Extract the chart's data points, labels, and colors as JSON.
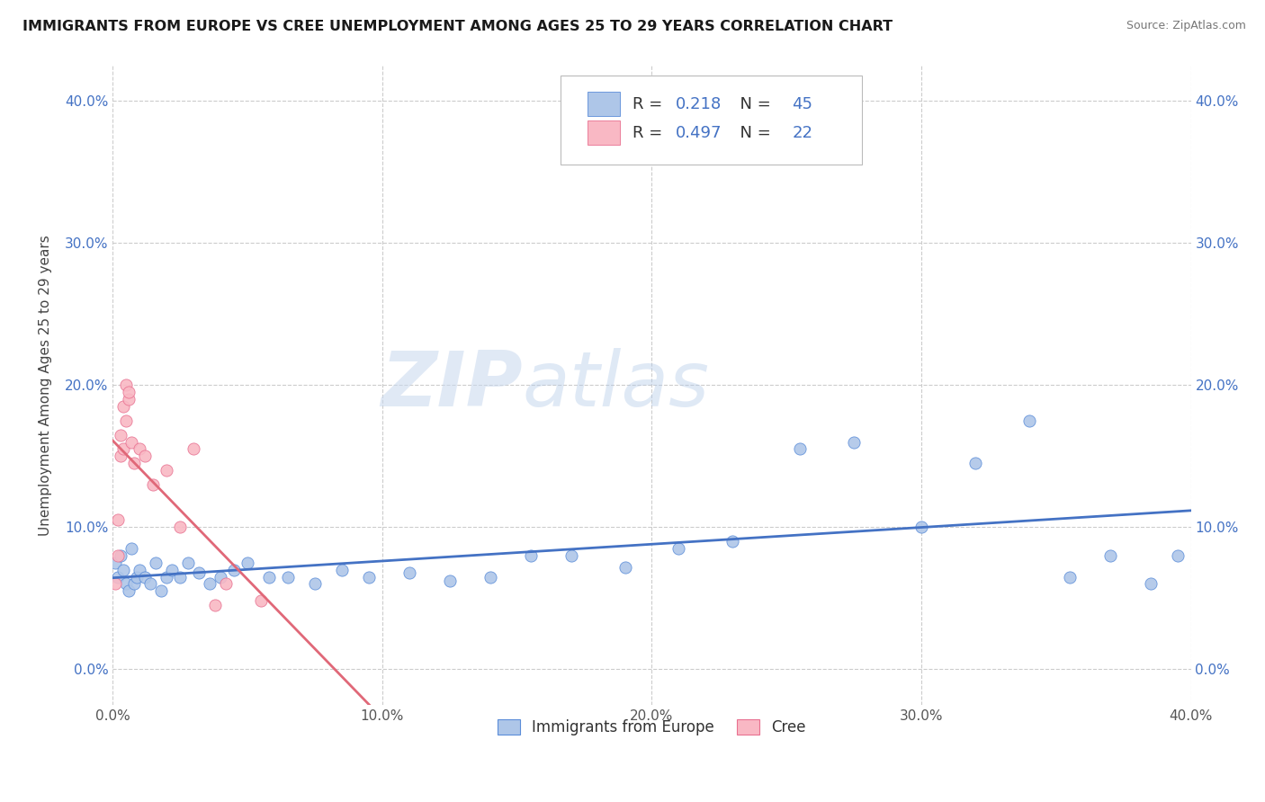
{
  "title": "IMMIGRANTS FROM EUROPE VS CREE UNEMPLOYMENT AMONG AGES 25 TO 29 YEARS CORRELATION CHART",
  "source": "Source: ZipAtlas.com",
  "ylabel": "Unemployment Among Ages 25 to 29 years",
  "xlim": [
    0.0,
    0.4
  ],
  "ylim": [
    -0.025,
    0.425
  ],
  "xticks": [
    0.0,
    0.1,
    0.2,
    0.3,
    0.4
  ],
  "yticks": [
    0.0,
    0.1,
    0.2,
    0.3,
    0.4
  ],
  "xtick_labels": [
    "0.0%",
    "10.0%",
    "20.0%",
    "30.0%",
    "40.0%"
  ],
  "ytick_labels": [
    "0.0%",
    "10.0%",
    "20.0%",
    "30.0%",
    "40.0%"
  ],
  "blue_fill": "#aec6e8",
  "pink_fill": "#f9b8c4",
  "blue_edge": "#5b8dd9",
  "pink_edge": "#e87090",
  "blue_line": "#4472c4",
  "pink_line": "#e06878",
  "R_blue": 0.218,
  "N_blue": 45,
  "R_pink": 0.497,
  "N_pink": 22,
  "legend_label_blue": "Immigrants from Europe",
  "legend_label_pink": "Cree",
  "watermark_zip": "ZIP",
  "watermark_atlas": "atlas",
  "bg": "#ffffff",
  "grid_color": "#cccccc",
  "blue_x": [
    0.001,
    0.002,
    0.003,
    0.004,
    0.005,
    0.006,
    0.007,
    0.008,
    0.009,
    0.01,
    0.012,
    0.014,
    0.016,
    0.018,
    0.02,
    0.022,
    0.025,
    0.028,
    0.032,
    0.036,
    0.04,
    0.045,
    0.05,
    0.058,
    0.065,
    0.075,
    0.085,
    0.095,
    0.11,
    0.125,
    0.14,
    0.155,
    0.17,
    0.19,
    0.21,
    0.23,
    0.255,
    0.275,
    0.3,
    0.32,
    0.34,
    0.355,
    0.37,
    0.385,
    0.395
  ],
  "blue_y": [
    0.075,
    0.065,
    0.08,
    0.07,
    0.06,
    0.055,
    0.085,
    0.06,
    0.065,
    0.07,
    0.065,
    0.06,
    0.075,
    0.055,
    0.065,
    0.07,
    0.065,
    0.075,
    0.068,
    0.06,
    0.065,
    0.07,
    0.075,
    0.065,
    0.065,
    0.06,
    0.07,
    0.065,
    0.068,
    0.062,
    0.065,
    0.08,
    0.08,
    0.072,
    0.085,
    0.09,
    0.155,
    0.16,
    0.1,
    0.145,
    0.175,
    0.065,
    0.08,
    0.06,
    0.08
  ],
  "pink_x": [
    0.001,
    0.002,
    0.002,
    0.003,
    0.003,
    0.004,
    0.004,
    0.005,
    0.005,
    0.006,
    0.006,
    0.007,
    0.008,
    0.01,
    0.012,
    0.015,
    0.02,
    0.025,
    0.03,
    0.038,
    0.042,
    0.055
  ],
  "pink_y": [
    0.06,
    0.08,
    0.105,
    0.15,
    0.165,
    0.155,
    0.185,
    0.175,
    0.2,
    0.19,
    0.195,
    0.16,
    0.145,
    0.155,
    0.15,
    0.13,
    0.14,
    0.1,
    0.155,
    0.045,
    0.06,
    0.048
  ]
}
